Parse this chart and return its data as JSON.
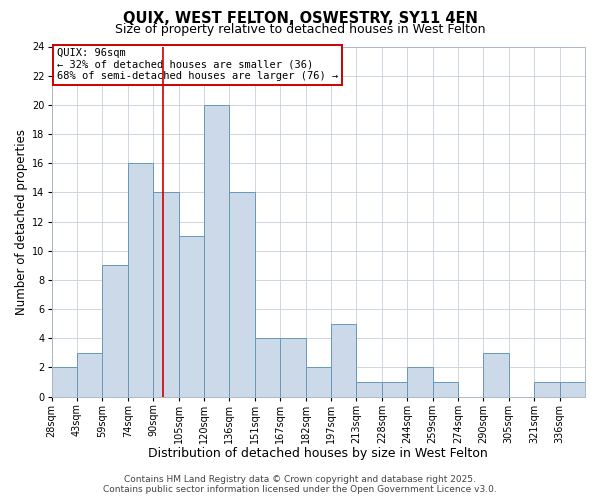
{
  "title": "QUIX, WEST FELTON, OSWESTRY, SY11 4EN",
  "subtitle": "Size of property relative to detached houses in West Felton",
  "xlabel": "Distribution of detached houses by size in West Felton",
  "ylabel": "Number of detached properties",
  "bin_labels": [
    "28sqm",
    "43sqm",
    "59sqm",
    "74sqm",
    "90sqm",
    "105sqm",
    "120sqm",
    "136sqm",
    "151sqm",
    "167sqm",
    "182sqm",
    "197sqm",
    "213sqm",
    "228sqm",
    "244sqm",
    "259sqm",
    "274sqm",
    "290sqm",
    "305sqm",
    "321sqm",
    "336sqm"
  ],
  "n_bins": 21,
  "counts": [
    2,
    3,
    9,
    16,
    14,
    11,
    20,
    14,
    4,
    4,
    2,
    5,
    1,
    1,
    2,
    1,
    0,
    3,
    0,
    1,
    1
  ],
  "bar_color": "#ccd9e8",
  "bar_edge_color": "#6699bb",
  "bar_linewidth": 0.7,
  "vline_x": 4,
  "vline_color": "#cc0000",
  "vline_linewidth": 1.2,
  "ylim": [
    0,
    24
  ],
  "yticks": [
    0,
    2,
    4,
    6,
    8,
    10,
    12,
    14,
    16,
    18,
    20,
    22,
    24
  ],
  "annotation_title": "QUIX: 96sqm",
  "annotation_line1": "← 32% of detached houses are smaller (36)",
  "annotation_line2": "68% of semi-detached houses are larger (76) →",
  "annotation_box_facecolor": "#ffffff",
  "annotation_box_edgecolor": "#cc0000",
  "footer1": "Contains HM Land Registry data © Crown copyright and database right 2025.",
  "footer2": "Contains public sector information licensed under the Open Government Licence v3.0.",
  "bg_color": "#ffffff",
  "plot_bg_color": "#ffffff",
  "grid_color": "#c8d0dc",
  "title_fontsize": 10.5,
  "subtitle_fontsize": 9,
  "xlabel_fontsize": 9,
  "ylabel_fontsize": 8.5,
  "tick_fontsize": 7,
  "annotation_fontsize": 7.5,
  "footer_fontsize": 6.5
}
